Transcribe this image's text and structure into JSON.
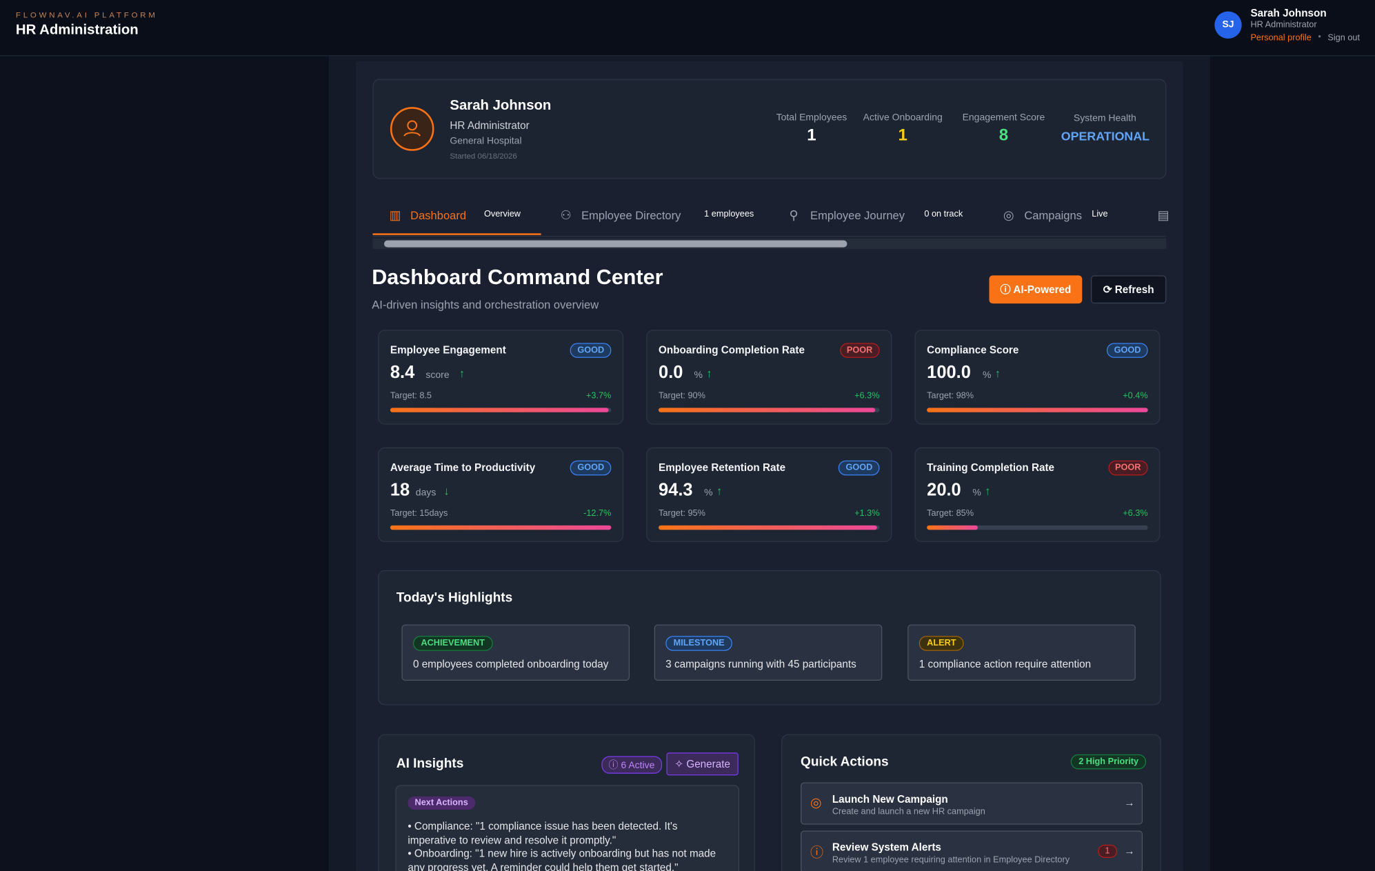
{
  "header": {
    "brand": "FLOWNAV.AI PLATFORM",
    "title": "HR Administration",
    "user": {
      "initials": "SJ",
      "name": "Sarah Johnson",
      "role": "HR Administrator",
      "profile_link": "Personal profile",
      "sign_out": "Sign out"
    }
  },
  "profile": {
    "name": "Sarah Johnson",
    "role": "HR Administrator",
    "organization": "General Hospital",
    "started": "Started 06/18/2026",
    "stats": [
      {
        "label": "Total Employees",
        "value": "1"
      },
      {
        "label": "Active Onboarding",
        "value": "1"
      },
      {
        "label": "Engagement Score",
        "value": "8"
      },
      {
        "label": "System Health",
        "value": "OPERATIONAL"
      }
    ]
  },
  "tabs": [
    {
      "label": "Dashboard",
      "badge": "Overview"
    },
    {
      "label": "Employee Directory",
      "badge": "1 employees"
    },
    {
      "label": "Employee Journey",
      "badge": "0 on track"
    },
    {
      "label": "Campaigns",
      "badge": "Live"
    }
  ],
  "section": {
    "title": "Dashboard Command Center",
    "subtitle": "AI-driven insights and orchestration overview",
    "buttons": [
      "AI-Powered",
      "Refresh"
    ]
  },
  "metrics": [
    {
      "name": "Employee Engagement",
      "status": "GOOD",
      "value": "8.4",
      "unit": "score",
      "trend": "up",
      "target": "Target: 8.5",
      "change": "+3.7%"
    },
    {
      "name": "Onboarding Completion Rate",
      "status": "POOR",
      "value": "0.0",
      "unit": "%",
      "trend": "up",
      "target": "Target: 90%",
      "change": "+6.3%"
    },
    {
      "name": "Compliance Score",
      "status": "GOOD",
      "value": "100.0",
      "unit": "%",
      "trend": "up",
      "target": "Target: 98%",
      "change": "+0.4%"
    },
    {
      "name": "Average Time to Productivity",
      "status": "GOOD",
      "value": "18",
      "unit": "days",
      "trend": "down",
      "target": "Target: 15days",
      "change": "-12.7%"
    },
    {
      "name": "Employee Retention Rate",
      "status": "GOOD",
      "value": "94.3",
      "unit": "%",
      "trend": "up",
      "target": "Target: 95%",
      "change": "+1.3%"
    },
    {
      "name": "Training Completion Rate",
      "status": "POOR",
      "value": "20.0",
      "unit": "%",
      "trend": "up",
      "target": "Target: 85%",
      "change": "+6.3%"
    }
  ],
  "highlights": {
    "title": "Today's Highlights",
    "items": [
      {
        "tag": "ACHIEVEMENT",
        "text": "0 employees completed onboarding today"
      },
      {
        "tag": "MILESTONE",
        "text": "3 campaigns running with 45 participants"
      },
      {
        "tag": "ALERT",
        "text": "1 compliance action require attention"
      }
    ]
  },
  "insights": {
    "title": "AI Insights",
    "badge": "6 Active",
    "button": "Generate",
    "tag": "Next Actions",
    "lines": [
      "• Compliance: \"1 compliance issue has been detected. It's imperative to review and resolve it promptly.\"",
      "• Onboarding: \"1 new hire is actively onboarding but has not made any progress yet. A reminder could help them get started.\""
    ]
  },
  "quick_actions": {
    "title": "Quick Actions",
    "badge": "2 High Priority",
    "items": [
      {
        "title": "Launch New Campaign",
        "description": "Create and launch a new HR campaign"
      },
      {
        "title": "Review System Alerts",
        "description": "Review 1 employee requiring attention in Employee Directory",
        "count": "1"
      }
    ]
  }
}
